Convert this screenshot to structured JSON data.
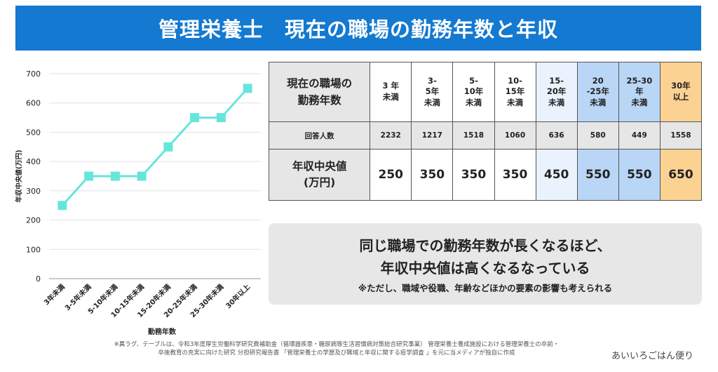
{
  "title": "管理栄養士　現在の職場の勤務年数と年収",
  "chart_data": {
    "type": "line",
    "categories": [
      "3年未満",
      "3-5年未満",
      "5-10年未満",
      "10-15年未満",
      "15-20年未満",
      "20-25年未満",
      "25-30年未満",
      "30年以上"
    ],
    "series": [
      {
        "name": "年収中央値(万円)",
        "values": [
          250,
          350,
          350,
          350,
          450,
          550,
          550,
          650
        ]
      }
    ],
    "ylabel": "年収中央値(万円)",
    "xlabel": "勤務年数",
    "ylim": [
      0,
      700
    ],
    "yticks": [
      0,
      100,
      200,
      300,
      400,
      500,
      600,
      700
    ],
    "marker": "square",
    "line_color": "#66e6da"
  },
  "table": {
    "row_header_label": "現在の職場の勤務年数",
    "columns": [
      {
        "line1": "3 年",
        "line2": "未満"
      },
      {
        "line1": "3-",
        "line2": "5年",
        "line3": "未満"
      },
      {
        "line1": "5-",
        "line2": "10年",
        "line3": "未満"
      },
      {
        "line1": "10-",
        "line2": "15年",
        "line3": "未満"
      },
      {
        "line1": "15-",
        "line2": "20年",
        "line3": "未満"
      },
      {
        "line1": "20",
        "line2": "-25年",
        "line3": "未満"
      },
      {
        "line1": "25-30",
        "line2": "年",
        "line3": "未満"
      },
      {
        "line1": "30年",
        "line2": "以上"
      }
    ],
    "count_label": "回答人数",
    "counts": [
      "2232",
      "1217",
      "1518",
      "1060",
      "636",
      "580",
      "449",
      "1558"
    ],
    "median_label_line1": "年収中央値",
    "median_label_line2": "(万円)",
    "medians": [
      "250",
      "350",
      "350",
      "350",
      "450",
      "550",
      "550",
      "650"
    ],
    "colors": {
      "light_blue": "#eaf2fd",
      "mid_blue": "#b9d6f6",
      "orange": "#fcd293"
    }
  },
  "note": {
    "line1": "同じ職場での勤務年数が長くなるほど、",
    "line2": "年収中央値は高くなるなっている",
    "sub": "※ただし、職域や役職、年齢などほかの要素の影響も考えられる"
  },
  "source": {
    "line1": "※異ラグ、テーブルは、令和3年度厚生労働科学研究費補助金（循環器疾患・糖尿病等生活習慣病対策総合研究事業） 管理栄養士養成施設における管理栄養士の卒前・",
    "line2": "卒後教育の充実に向けた研究 分担研究報告書 「管理栄養士の学歴及び職域と年収に関する疫学調査 」を元に当メディアが独自に作成"
  },
  "brand": "あいいろごはん便り",
  "colors": {
    "banner": "#1479d0"
  }
}
